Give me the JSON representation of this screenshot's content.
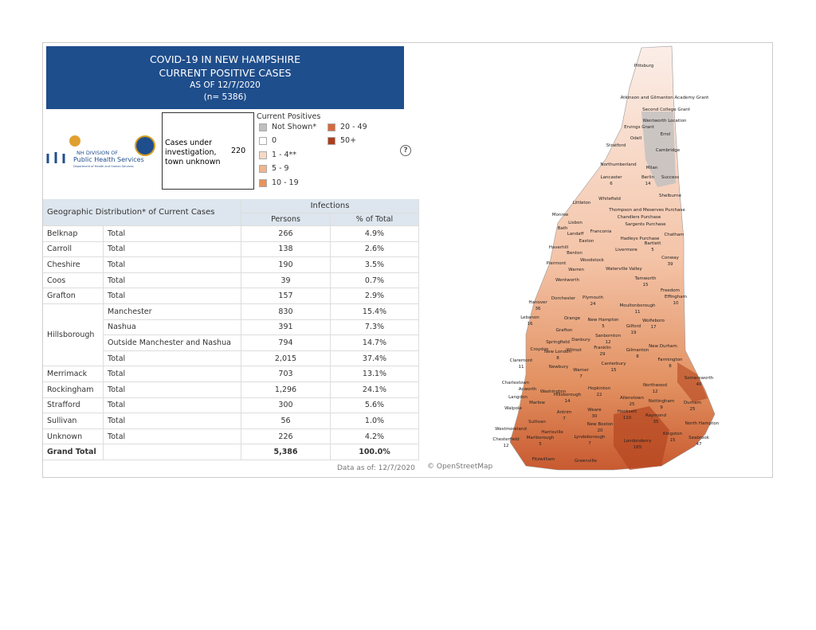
{
  "header": {
    "title": "COVID-19 IN NEW HAMPSHIRE",
    "subtitle": "CURRENT POSITIVE CASES",
    "as_of": "AS OF 12/7/2020",
    "n": "(n= 5386)"
  },
  "logo": {
    "line1": "NH DIVISION OF",
    "line2": "Public Health Services",
    "line3": "Department of Health and Human Services"
  },
  "investigation": {
    "label": "Cases under investigation, town unknown",
    "value": "220"
  },
  "legend": {
    "title": "Current Positives",
    "items": [
      {
        "label": "Not Shown*",
        "color": "#bfbfbf"
      },
      {
        "label": "0",
        "color": "#ffffff"
      },
      {
        "label": "1 - 4**",
        "color": "#f7d8c6"
      },
      {
        "label": "5 - 9",
        "color": "#f1b48c"
      },
      {
        "label": "10 - 19",
        "color": "#e6935a"
      },
      {
        "label": "20 - 49",
        "color": "#d8683a"
      },
      {
        "label": "50+",
        "color": "#ae3e1b"
      }
    ]
  },
  "table": {
    "title": "Geographic Distribution* of Current Cases",
    "group_header": "Infections",
    "columns": [
      "Persons",
      "% of Total"
    ],
    "rows": [
      {
        "region": "Belknap",
        "group": "Total",
        "persons": "266",
        "percent": "4.9%"
      },
      {
        "region": "Carroll",
        "group": "Total",
        "persons": "138",
        "percent": "2.6%"
      },
      {
        "region": "Cheshire",
        "group": "Total",
        "persons": "190",
        "percent": "3.5%"
      },
      {
        "region": "Coos",
        "group": "Total",
        "persons": "39",
        "percent": "0.7%"
      },
      {
        "region": "Grafton",
        "group": "Total",
        "persons": "157",
        "percent": "2.9%"
      },
      {
        "region": "Hillsborough",
        "group": "Manchester",
        "persons": "830",
        "percent": "15.4%"
      },
      {
        "group": "Nashua",
        "persons": "391",
        "percent": "7.3%"
      },
      {
        "group": "Outside Manchester and Nashua",
        "persons": "794",
        "percent": "14.7%"
      },
      {
        "group": "Total",
        "persons": "2,015",
        "percent": "37.4%"
      },
      {
        "region": "Merrimack",
        "group": "Total",
        "persons": "703",
        "percent": "13.1%"
      },
      {
        "region": "Rockingham",
        "group": "Total",
        "persons": "1,296",
        "percent": "24.1%"
      },
      {
        "region": "Strafford",
        "group": "Total",
        "persons": "300",
        "percent": "5.6%"
      },
      {
        "region": "Sullivan",
        "group": "Total",
        "persons": "56",
        "percent": "1.0%"
      },
      {
        "region": "Unknown",
        "group": "Total",
        "persons": "226",
        "percent": "4.2%"
      },
      {
        "region": "Grand Total",
        "persons": "5,386",
        "percent": "100.0%"
      }
    ]
  },
  "footer": {
    "data_as_of": "Data as of:  12/7/2020",
    "credit": "© OpenStreetMap"
  },
  "map": {
    "towns": [
      {
        "name": "Pittsburg"
      },
      {
        "name": "Atkinson and Gilmanton Academy Grant"
      },
      {
        "name": "Second College Grant"
      },
      {
        "name": "Wentworth Location"
      },
      {
        "name": "Errol"
      },
      {
        "name": "Ervings Grant"
      },
      {
        "name": "Odell"
      },
      {
        "name": "Stratford"
      },
      {
        "name": "Cambridge"
      },
      {
        "name": "Northumberland"
      },
      {
        "name": "Milan"
      },
      {
        "name": "Lancaster",
        "cases": 6
      },
      {
        "name": "Berlin",
        "cases": 14
      },
      {
        "name": "Success"
      },
      {
        "name": "Whitefield"
      },
      {
        "name": "Shelburne"
      },
      {
        "name": "Littleton"
      },
      {
        "name": "Thompson and Meserves Purchase"
      },
      {
        "name": "Monroe"
      },
      {
        "name": "Chandlers Purchase"
      },
      {
        "name": "Lisbon"
      },
      {
        "name": "Sargents Purchase"
      },
      {
        "name": "Bath"
      },
      {
        "name": "Franconia"
      },
      {
        "name": "Landaff"
      },
      {
        "name": "Chatham"
      },
      {
        "name": "Hadleys Purchase"
      },
      {
        "name": "Easton"
      },
      {
        "name": "Bartlett",
        "cases": 5
      },
      {
        "name": "Haverhill"
      },
      {
        "name": "Benton"
      },
      {
        "name": "Livermore"
      },
      {
        "name": "Woodstock"
      },
      {
        "name": "Conway",
        "cases": 39
      },
      {
        "name": "Piermont"
      },
      {
        "name": "Warren"
      },
      {
        "name": "Waterville Valley"
      },
      {
        "name": "Wentworth"
      },
      {
        "name": "Tamworth",
        "cases": 15
      },
      {
        "name": "Freedom"
      },
      {
        "name": "Effingham",
        "cases": 10
      },
      {
        "name": "Dorchester"
      },
      {
        "name": "Plymouth",
        "cases": 24
      },
      {
        "name": "Hanover",
        "cases": 36
      },
      {
        "name": "Moultonborough",
        "cases": 11
      },
      {
        "name": "Lebanon",
        "cases": 16
      },
      {
        "name": "Orange"
      },
      {
        "name": "New Hampton",
        "cases": 5
      },
      {
        "name": "Wolfeboro",
        "cases": 17
      },
      {
        "name": "Gilford",
        "cases": 19
      },
      {
        "name": "Grafton"
      },
      {
        "name": "Sanbornton",
        "cases": 12
      },
      {
        "name": "Springfield"
      },
      {
        "name": "Danbury"
      },
      {
        "name": "New Durham"
      },
      {
        "name": "Croydon"
      },
      {
        "name": "New London",
        "cases": 8
      },
      {
        "name": "Wilmot"
      },
      {
        "name": "Franklin",
        "cases": 29
      },
      {
        "name": "Gilmanton",
        "cases": 8
      },
      {
        "name": "Farmington",
        "cases": 8
      },
      {
        "name": "Claremont",
        "cases": 11
      },
      {
        "name": "Newbury"
      },
      {
        "name": "Warner",
        "cases": 7
      },
      {
        "name": "Canterbury",
        "cases": 15
      },
      {
        "name": "Somersworth",
        "cases": 40
      },
      {
        "name": "Charlestown"
      },
      {
        "name": "Northwood",
        "cases": 12
      },
      {
        "name": "Acworth"
      },
      {
        "name": "Washington"
      },
      {
        "name": "Hopkinton",
        "cases": 22
      },
      {
        "name": "Langdon"
      },
      {
        "name": "Hillsborough",
        "cases": 14
      },
      {
        "name": "Allenstown",
        "cases": 25
      },
      {
        "name": "Walpole"
      },
      {
        "name": "Marlow"
      },
      {
        "name": "Nottingham",
        "cases": 9
      },
      {
        "name": "Durham",
        "cases": 25
      },
      {
        "name": "Antrim",
        "cases": 7
      },
      {
        "name": "Weare",
        "cases": 30
      },
      {
        "name": "Raymond",
        "cases": 35
      },
      {
        "name": "Hooksett",
        "cases": 110
      },
      {
        "name": "Sullivan"
      },
      {
        "name": "North Hampton"
      },
      {
        "name": "Westmoreland"
      },
      {
        "name": "New Boston",
        "cases": 20
      },
      {
        "name": "Harrisville"
      },
      {
        "name": "Kingston",
        "cases": 15
      },
      {
        "name": "Chesterfield",
        "cases": 12
      },
      {
        "name": "Marlborough",
        "cases": 5
      },
      {
        "name": "Lyndeborough",
        "cases": 7
      },
      {
        "name": "Seabrook",
        "cases": 47
      },
      {
        "name": "Londonderry",
        "cases": 165
      },
      {
        "name": "Fitzwilliam"
      },
      {
        "name": "Greenville"
      }
    ]
  }
}
